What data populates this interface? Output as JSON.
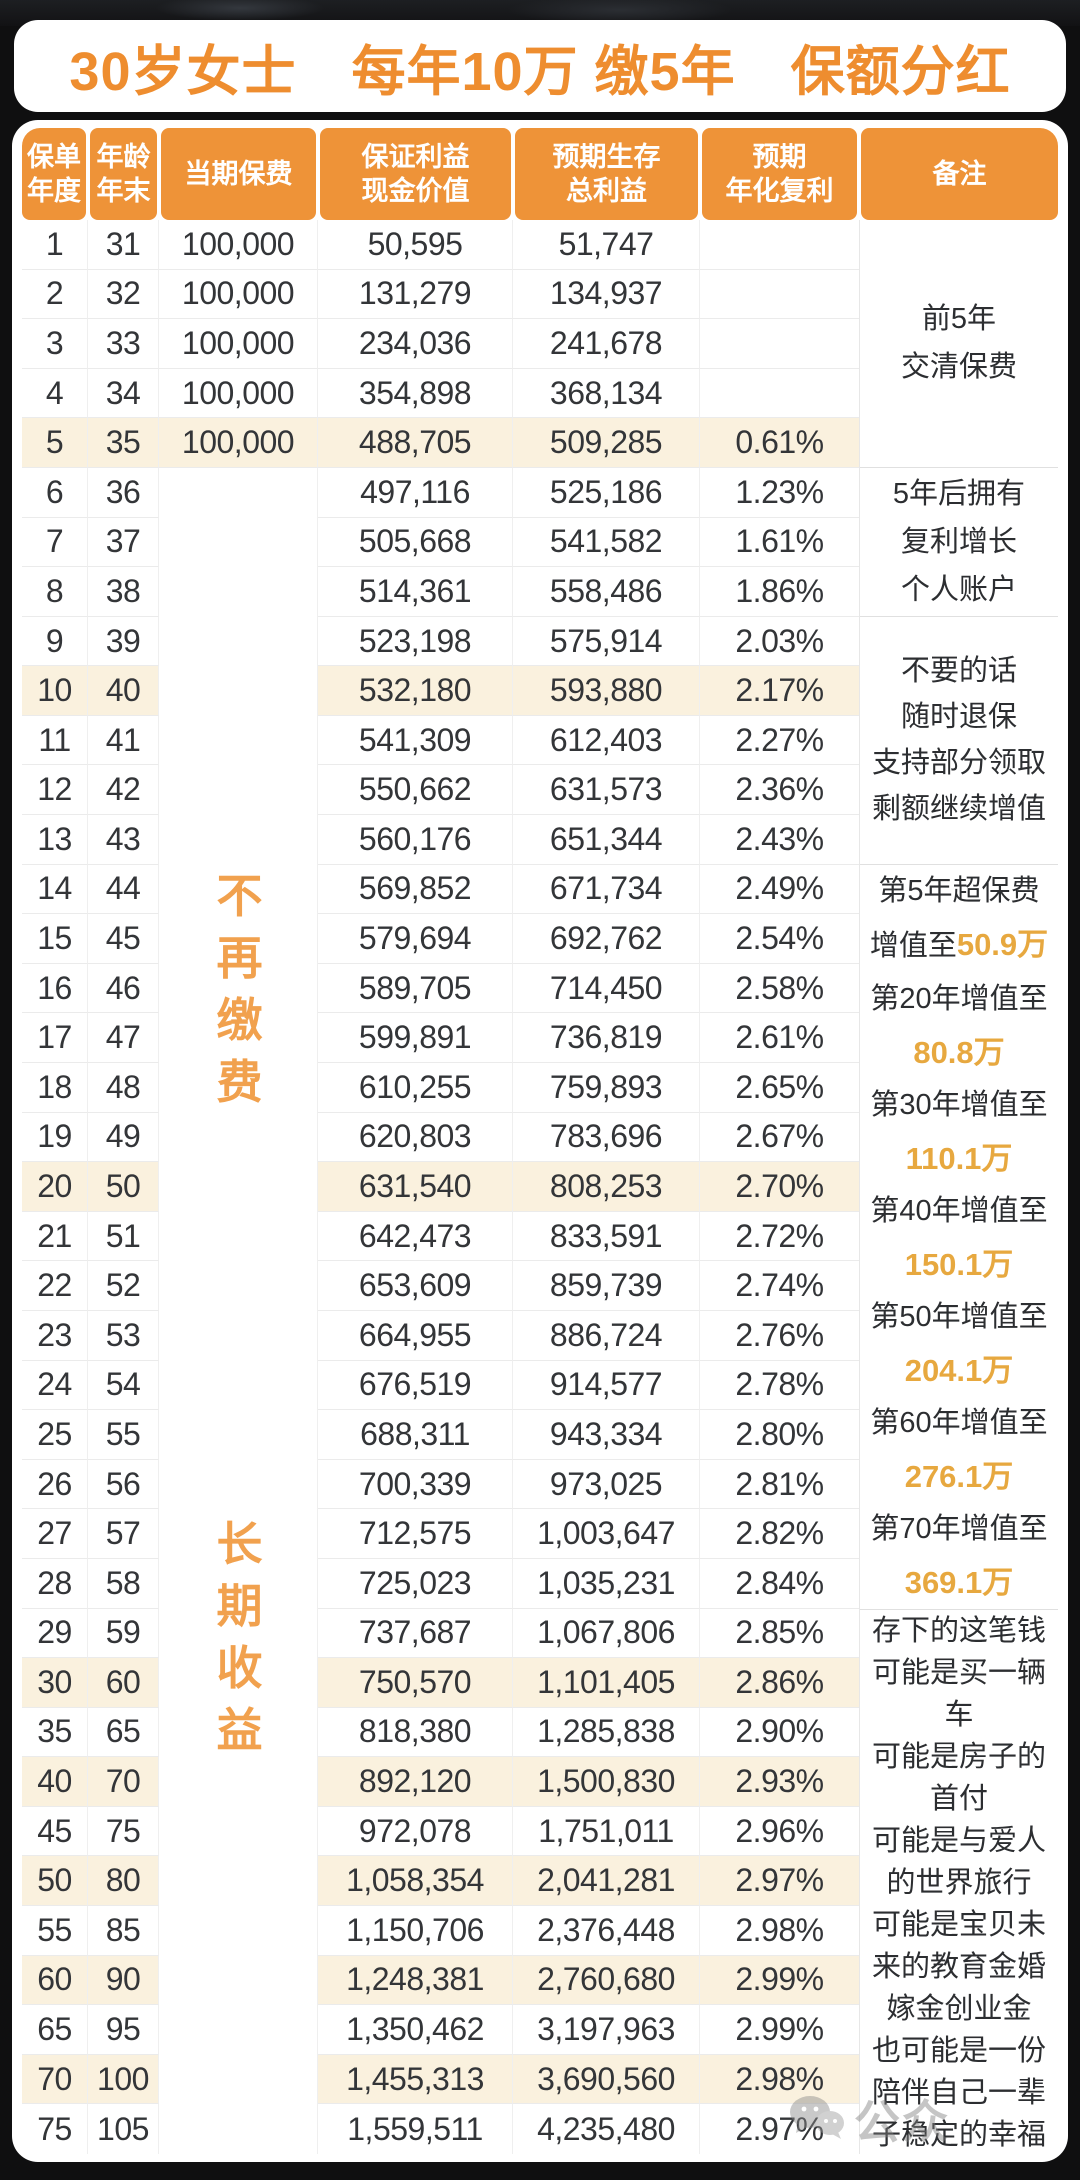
{
  "title": "30岁女士　每年10万 缴5年　保额分红",
  "colors": {
    "header_orange": "#EE9338",
    "title_orange": "#EE8D2F",
    "note_orange": "#E7A83F",
    "vertical_label_orange": "#F1A14E",
    "highlight_row_cream": "#FAF1DE"
  },
  "table": {
    "headers": [
      {
        "lines": [
          "保单",
          "年度"
        ]
      },
      {
        "lines": [
          "年龄",
          "年末"
        ]
      },
      {
        "lines": [
          "当期保费"
        ]
      },
      {
        "lines": [
          "保证利益",
          "现金价值"
        ]
      },
      {
        "lines": [
          "预期生存",
          "总利益"
        ]
      },
      {
        "lines": [
          "预期",
          "年化复利"
        ]
      },
      {
        "lines": [
          "备注"
        ]
      }
    ],
    "premium_labels": [
      {
        "text": "不再缴费"
      },
      {
        "text": "长期收益"
      }
    ],
    "rows": [
      {
        "year": "1",
        "age": "31",
        "premium": "100,000",
        "cash": "50,595",
        "total": "51,747",
        "rate": "",
        "hl": false
      },
      {
        "year": "2",
        "age": "32",
        "premium": "100,000",
        "cash": "131,279",
        "total": "134,937",
        "rate": "",
        "hl": false
      },
      {
        "year": "3",
        "age": "33",
        "premium": "100,000",
        "cash": "234,036",
        "total": "241,678",
        "rate": "",
        "hl": false
      },
      {
        "year": "4",
        "age": "34",
        "premium": "100,000",
        "cash": "354,898",
        "total": "368,134",
        "rate": "",
        "hl": false
      },
      {
        "year": "5",
        "age": "35",
        "premium": "100,000",
        "cash": "488,705",
        "total": "509,285",
        "rate": "0.61%",
        "hl": true
      },
      {
        "year": "6",
        "age": "36",
        "premium": "",
        "cash": "497,116",
        "total": "525,186",
        "rate": "1.23%",
        "hl": false
      },
      {
        "year": "7",
        "age": "37",
        "premium": "",
        "cash": "505,668",
        "total": "541,582",
        "rate": "1.61%",
        "hl": false
      },
      {
        "year": "8",
        "age": "38",
        "premium": "",
        "cash": "514,361",
        "total": "558,486",
        "rate": "1.86%",
        "hl": false
      },
      {
        "year": "9",
        "age": "39",
        "premium": "",
        "cash": "523,198",
        "total": "575,914",
        "rate": "2.03%",
        "hl": false
      },
      {
        "year": "10",
        "age": "40",
        "premium": "",
        "cash": "532,180",
        "total": "593,880",
        "rate": "2.17%",
        "hl": true
      },
      {
        "year": "11",
        "age": "41",
        "premium": "",
        "cash": "541,309",
        "total": "612,403",
        "rate": "2.27%",
        "hl": false
      },
      {
        "year": "12",
        "age": "42",
        "premium": "",
        "cash": "550,662",
        "total": "631,573",
        "rate": "2.36%",
        "hl": false
      },
      {
        "year": "13",
        "age": "43",
        "premium": "",
        "cash": "560,176",
        "total": "651,344",
        "rate": "2.43%",
        "hl": false
      },
      {
        "year": "14",
        "age": "44",
        "premium": "",
        "cash": "569,852",
        "total": "671,734",
        "rate": "2.49%",
        "hl": false
      },
      {
        "year": "15",
        "age": "45",
        "premium": "",
        "cash": "579,694",
        "total": "692,762",
        "rate": "2.54%",
        "hl": false
      },
      {
        "year": "16",
        "age": "46",
        "premium": "",
        "cash": "589,705",
        "total": "714,450",
        "rate": "2.58%",
        "hl": false
      },
      {
        "year": "17",
        "age": "47",
        "premium": "",
        "cash": "599,891",
        "total": "736,819",
        "rate": "2.61%",
        "hl": false
      },
      {
        "year": "18",
        "age": "48",
        "premium": "",
        "cash": "610,255",
        "total": "759,893",
        "rate": "2.65%",
        "hl": false
      },
      {
        "year": "19",
        "age": "49",
        "premium": "",
        "cash": "620,803",
        "total": "783,696",
        "rate": "2.67%",
        "hl": false
      },
      {
        "year": "20",
        "age": "50",
        "premium": "",
        "cash": "631,540",
        "total": "808,253",
        "rate": "2.70%",
        "hl": true
      },
      {
        "year": "21",
        "age": "51",
        "premium": "",
        "cash": "642,473",
        "total": "833,591",
        "rate": "2.72%",
        "hl": false
      },
      {
        "year": "22",
        "age": "52",
        "premium": "",
        "cash": "653,609",
        "total": "859,739",
        "rate": "2.74%",
        "hl": false
      },
      {
        "year": "23",
        "age": "53",
        "premium": "",
        "cash": "664,955",
        "total": "886,724",
        "rate": "2.76%",
        "hl": false
      },
      {
        "year": "24",
        "age": "54",
        "premium": "",
        "cash": "676,519",
        "total": "914,577",
        "rate": "2.78%",
        "hl": false
      },
      {
        "year": "25",
        "age": "55",
        "premium": "",
        "cash": "688,311",
        "total": "943,334",
        "rate": "2.80%",
        "hl": false
      },
      {
        "year": "26",
        "age": "56",
        "premium": "",
        "cash": "700,339",
        "total": "973,025",
        "rate": "2.81%",
        "hl": false
      },
      {
        "year": "27",
        "age": "57",
        "premium": "",
        "cash": "712,575",
        "total": "1,003,647",
        "rate": "2.82%",
        "hl": false
      },
      {
        "year": "28",
        "age": "58",
        "premium": "",
        "cash": "725,023",
        "total": "1,035,231",
        "rate": "2.84%",
        "hl": false
      },
      {
        "year": "29",
        "age": "59",
        "premium": "",
        "cash": "737,687",
        "total": "1,067,806",
        "rate": "2.85%",
        "hl": false
      },
      {
        "year": "30",
        "age": "60",
        "premium": "",
        "cash": "750,570",
        "total": "1,101,405",
        "rate": "2.86%",
        "hl": true
      },
      {
        "year": "35",
        "age": "65",
        "premium": "",
        "cash": "818,380",
        "total": "1,285,838",
        "rate": "2.90%",
        "hl": false
      },
      {
        "year": "40",
        "age": "70",
        "premium": "",
        "cash": "892,120",
        "total": "1,500,830",
        "rate": "2.93%",
        "hl": true
      },
      {
        "year": "45",
        "age": "75",
        "premium": "",
        "cash": "972,078",
        "total": "1,751,011",
        "rate": "2.96%",
        "hl": false
      },
      {
        "year": "50",
        "age": "80",
        "premium": "",
        "cash": "1,058,354",
        "total": "2,041,281",
        "rate": "2.97%",
        "hl": true
      },
      {
        "year": "55",
        "age": "85",
        "premium": "",
        "cash": "1,150,706",
        "total": "2,376,448",
        "rate": "2.98%",
        "hl": false
      },
      {
        "year": "60",
        "age": "90",
        "premium": "",
        "cash": "1,248,381",
        "total": "2,760,680",
        "rate": "2.99%",
        "hl": true
      },
      {
        "year": "65",
        "age": "95",
        "premium": "",
        "cash": "1,350,462",
        "total": "3,197,963",
        "rate": "2.99%",
        "hl": false
      },
      {
        "year": "70",
        "age": "100",
        "premium": "",
        "cash": "1,455,313",
        "total": "3,690,560",
        "rate": "2.98%",
        "hl": true
      },
      {
        "year": "75",
        "age": "105",
        "premium": "",
        "cash": "1,559,511",
        "total": "4,235,480",
        "rate": "2.97%",
        "hl": false
      }
    ],
    "notes_groups": [
      {
        "rows": 5,
        "lines": [
          [
            {
              "t": "前5年",
              "em": false
            }
          ],
          [
            {
              "t": "交清保费",
              "em": false
            }
          ]
        ]
      },
      {
        "rows": 3,
        "lines": [
          [
            {
              "t": "5年后拥有",
              "em": false
            }
          ],
          [
            {
              "t": "复利增长",
              "em": false
            }
          ],
          [
            {
              "t": "个人账户",
              "em": false
            }
          ]
        ]
      },
      {
        "rows": 5,
        "lines": [
          [
            {
              "t": "不要的话",
              "em": false
            }
          ],
          [
            {
              "t": "随时退保",
              "em": false
            }
          ],
          [
            {
              "t": "支持部分领取",
              "em": false
            }
          ],
          [
            {
              "t": "剩额继续增值",
              "em": false
            }
          ]
        ]
      },
      {
        "rows": 15,
        "lines": [
          [
            {
              "t": "第5年超保费",
              "em": false
            }
          ],
          [
            {
              "t": "增值至",
              "em": false
            },
            {
              "t": "50.9万",
              "em": true
            }
          ],
          [
            {
              "t": "第20年增值至",
              "em": false
            }
          ],
          [
            {
              "t": "80.8万",
              "em": true
            }
          ],
          [
            {
              "t": "第30年增值至",
              "em": false
            }
          ],
          [
            {
              "t": "110.1万",
              "em": true
            }
          ],
          [
            {
              "t": "第40年增值至",
              "em": false
            }
          ],
          [
            {
              "t": "150.1万",
              "em": true
            }
          ],
          [
            {
              "t": "第50年增值至",
              "em": false
            }
          ],
          [
            {
              "t": "204.1万",
              "em": true
            }
          ],
          [
            {
              "t": "第60年增值至",
              "em": false
            }
          ],
          [
            {
              "t": "276.1万",
              "em": true
            }
          ],
          [
            {
              "t": "第70年增值至",
              "em": false
            }
          ],
          [
            {
              "t": "369.1万",
              "em": true
            }
          ]
        ]
      },
      {
        "rows": 11,
        "lines": [
          [
            {
              "t": "存下的这笔钱",
              "em": false
            }
          ],
          [
            {
              "t": "可能是买一辆",
              "em": false
            }
          ],
          [
            {
              "t": "车",
              "em": false
            }
          ],
          [
            {
              "t": "可能是房子的",
              "em": false
            }
          ],
          [
            {
              "t": "首付",
              "em": false
            }
          ],
          [
            {
              "t": "可能是与爱人",
              "em": false
            }
          ],
          [
            {
              "t": "的世界旅行",
              "em": false
            }
          ],
          [
            {
              "t": "可能是宝贝未",
              "em": false
            }
          ],
          [
            {
              "t": "来的教育金婚",
              "em": false
            }
          ],
          [
            {
              "t": "嫁金创业金",
              "em": false
            }
          ],
          [
            {
              "t": "也可能是一份",
              "em": false
            }
          ],
          [
            {
              "t": "陪伴自己一辈",
              "em": false
            }
          ],
          [
            {
              "t": "子稳定的幸福",
              "em": false
            }
          ]
        ]
      }
    ]
  },
  "watermark": {
    "icon": "wechat-icon",
    "text": "公众"
  }
}
